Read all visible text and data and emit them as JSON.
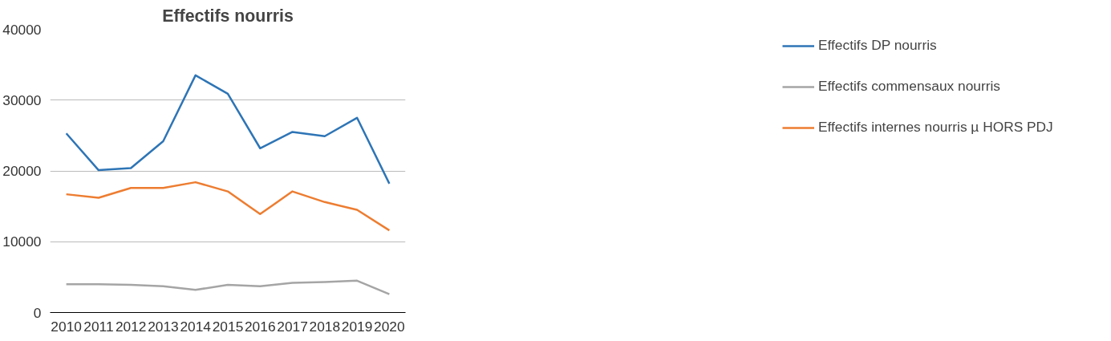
{
  "chart_data": {
    "type": "line",
    "title": "Effectifs nourris",
    "categories": [
      "2010",
      "2011",
      "2012",
      "2013",
      "2014",
      "2015",
      "2016",
      "2017",
      "2018",
      "2019",
      "2020"
    ],
    "series": [
      {
        "name": "Effectifs DP nourris",
        "color": "#2e75b6",
        "values": [
          25300,
          20100,
          20400,
          24200,
          33500,
          30900,
          23200,
          25500,
          24900,
          27500,
          18200
        ]
      },
      {
        "name": "Effectifs commensaux nourris",
        "color": "#a5a5a5",
        "values": [
          4000,
          4000,
          3900,
          3700,
          3200,
          3900,
          3700,
          4200,
          4300,
          4500,
          2600
        ]
      },
      {
        "name": "Effectifs internes nourris µ HORS PDJ",
        "color": "#ed7d31",
        "values": [
          16700,
          16200,
          17600,
          17600,
          18400,
          17100,
          13900,
          17100,
          15600,
          14500,
          11600
        ]
      }
    ],
    "ylim": [
      0,
      40000
    ],
    "yticks": [
      0,
      10000,
      20000,
      30000,
      40000
    ],
    "grid": "y",
    "legend": "right",
    "marker": "none",
    "line_style": "solid"
  }
}
